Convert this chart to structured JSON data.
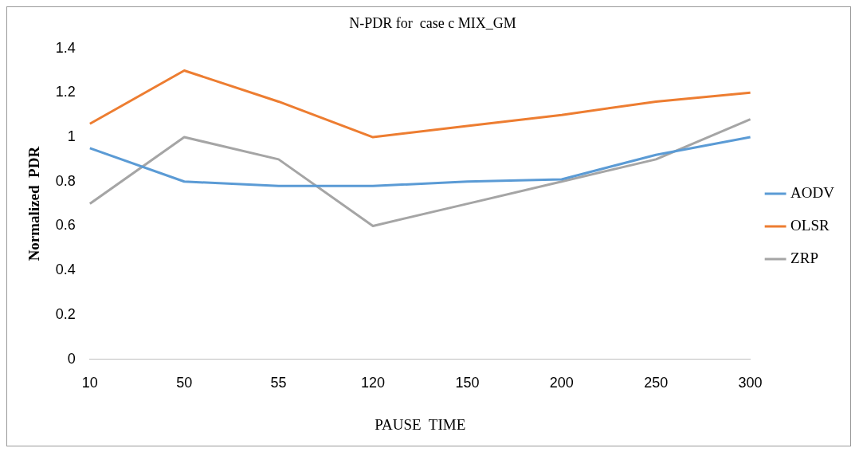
{
  "chart_data": {
    "type": "line",
    "title": "N-PDR for  case c MIX_GM",
    "xlabel": "PAUSE  TIME",
    "ylabel": "Normalized  PDR",
    "categories": [
      "10",
      "50",
      "55",
      "120",
      "150",
      "200",
      "250",
      "300"
    ],
    "ylim": [
      0,
      1.4
    ],
    "yticks": [
      0,
      0.2,
      0.4,
      0.6,
      0.8,
      1,
      1.2,
      1.4
    ],
    "grid": false,
    "legend": "right",
    "marker": "none",
    "line_style": "solid",
    "series": [
      {
        "name": "AODV",
        "color": "#5b9bd5",
        "values": [
          0.95,
          0.8,
          0.78,
          0.78,
          0.8,
          0.81,
          0.92,
          1.0
        ]
      },
      {
        "name": "OLSR",
        "color": "#ed7d31",
        "values": [
          1.06,
          1.3,
          1.16,
          1.0,
          1.05,
          1.1,
          1.16,
          1.2
        ]
      },
      {
        "name": "ZRP",
        "color": "#a5a5a5",
        "values": [
          0.7,
          1.0,
          0.9,
          0.6,
          0.7,
          0.8,
          0.9,
          1.08
        ]
      }
    ]
  }
}
